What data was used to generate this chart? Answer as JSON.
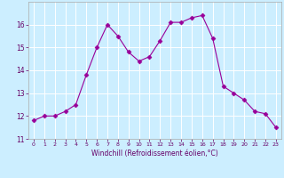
{
  "x": [
    0,
    1,
    2,
    3,
    4,
    5,
    6,
    7,
    8,
    9,
    10,
    11,
    12,
    13,
    14,
    15,
    16,
    17,
    18,
    19,
    20,
    21,
    22,
    23
  ],
  "y": [
    11.8,
    12.0,
    12.0,
    12.2,
    12.5,
    13.8,
    15.0,
    16.0,
    15.5,
    14.8,
    14.4,
    14.6,
    15.3,
    16.1,
    16.1,
    16.3,
    16.4,
    15.4,
    13.3,
    13.0,
    12.7,
    12.2,
    12.1,
    11.5
  ],
  "line_color": "#990099",
  "marker": "D",
  "marker_size": 2.5,
  "bg_color": "#cceeff",
  "grid_color": "#ffffff",
  "xlabel": "Windchill (Refroidissement éolien,°C)",
  "xlabel_color": "#660066",
  "tick_color": "#660066",
  "spine_color": "#aaaaaa",
  "ylim": [
    11,
    17
  ],
  "xlim": [
    -0.5,
    23.5
  ],
  "yticks": [
    11,
    12,
    13,
    14,
    15,
    16
  ],
  "xticks": [
    0,
    1,
    2,
    3,
    4,
    5,
    6,
    7,
    8,
    9,
    10,
    11,
    12,
    13,
    14,
    15,
    16,
    17,
    18,
    19,
    20,
    21,
    22,
    23
  ]
}
